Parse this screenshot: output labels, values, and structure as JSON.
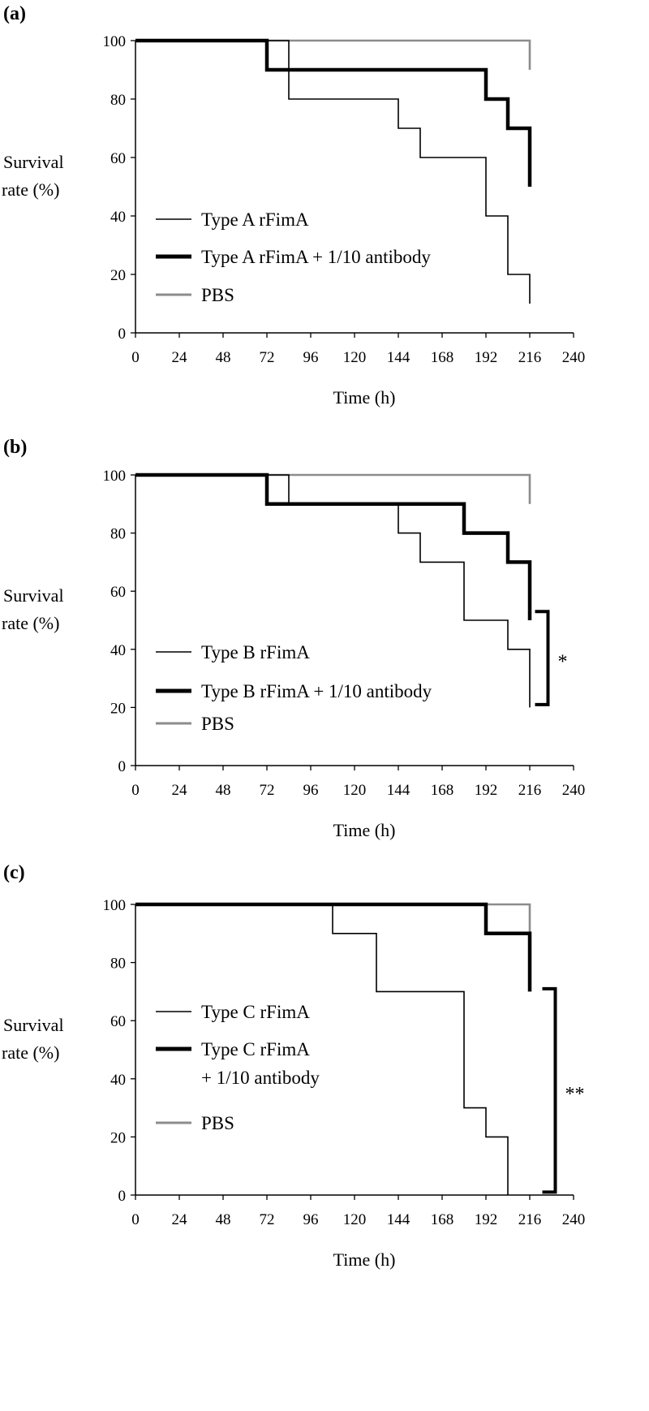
{
  "chart_data": [
    {
      "type": "line",
      "panel_label": "(a)",
      "xlabel": "Time (h)",
      "ylabel_lines": [
        "Survival",
        "rate (%)"
      ],
      "xlim": [
        0,
        240
      ],
      "ylim": [
        0,
        100
      ],
      "xticks": [
        0,
        24,
        48,
        72,
        96,
        120,
        144,
        168,
        192,
        216,
        240
      ],
      "yticks": [
        0,
        20,
        40,
        60,
        80,
        100
      ],
      "grid": false,
      "legend_placement": "lower-left",
      "series": [
        {
          "name": "Type A rFimA",
          "style": "thin",
          "color": "#000000",
          "x": [
            0,
            84,
            144,
            156,
            192,
            204,
            216
          ],
          "y": [
            100,
            80,
            70,
            60,
            40,
            20,
            10
          ]
        },
        {
          "name": "Type A rFimA + 1/10 antibody",
          "style": "thick",
          "color": "#000000",
          "x": [
            0,
            72,
            192,
            204,
            216
          ],
          "y": [
            100,
            90,
            80,
            70,
            50
          ]
        },
        {
          "name": "PBS",
          "style": "grey",
          "color": "#8c8c8c",
          "x": [
            0,
            216
          ],
          "y": [
            100,
            90
          ]
        }
      ],
      "significance": null
    },
    {
      "type": "line",
      "panel_label": "(b)",
      "xlabel": "Time (h)",
      "ylabel_lines": [
        "Survival",
        "rate (%)"
      ],
      "xlim": [
        0,
        240
      ],
      "ylim": [
        0,
        100
      ],
      "xticks": [
        0,
        24,
        48,
        72,
        96,
        120,
        144,
        168,
        192,
        216,
        240
      ],
      "yticks": [
        0,
        20,
        40,
        60,
        80,
        100
      ],
      "grid": false,
      "legend_placement": "lower-left",
      "series": [
        {
          "name": "Type B rFimA",
          "style": "thin",
          "color": "#000000",
          "x": [
            0,
            84,
            144,
            156,
            180,
            204,
            216
          ],
          "y": [
            100,
            90,
            80,
            70,
            50,
            40,
            20
          ]
        },
        {
          "name": "Type B rFimA + 1/10 antibody",
          "style": "thick",
          "color": "#000000",
          "x": [
            0,
            72,
            180,
            204,
            216
          ],
          "y": [
            100,
            90,
            80,
            70,
            50
          ]
        },
        {
          "name": "PBS",
          "style": "grey",
          "color": "#8c8c8c",
          "x": [
            0,
            216
          ],
          "y": [
            100,
            90
          ]
        }
      ],
      "significance": {
        "text": "*",
        "x": 226,
        "y_top": 53,
        "y_bottom": 21
      }
    },
    {
      "type": "line",
      "panel_label": "(c)",
      "xlabel": "Time (h)",
      "ylabel_lines": [
        "Survival",
        "rate (%)"
      ],
      "xlim": [
        0,
        240
      ],
      "ylim": [
        0,
        100
      ],
      "xticks": [
        0,
        24,
        48,
        72,
        96,
        120,
        144,
        168,
        192,
        216,
        240
      ],
      "yticks": [
        0,
        20,
        40,
        60,
        80,
        100
      ],
      "grid": false,
      "legend_placement": "lower-left",
      "series": [
        {
          "name": "Type C rFimA",
          "name_lines": [
            "Type C rFimA"
          ],
          "style": "thin",
          "color": "#000000",
          "x": [
            0,
            108,
            132,
            180,
            192,
            204
          ],
          "y": [
            100,
            90,
            70,
            30,
            20,
            0
          ]
        },
        {
          "name": "Type C rFimA + 1/10 antibody",
          "name_lines": [
            "Type C rFimA",
            "+ 1/10 antibody"
          ],
          "style": "thick",
          "color": "#000000",
          "x": [
            0,
            192,
            216
          ],
          "y": [
            100,
            90,
            70
          ]
        },
        {
          "name": "PBS",
          "name_lines": [
            "PBS"
          ],
          "style": "grey",
          "color": "#8c8c8c",
          "x": [
            0,
            216
          ],
          "y": [
            100,
            90
          ]
        }
      ],
      "significance": {
        "text": "**",
        "x": 230,
        "y_top": 71,
        "y_bottom": 1
      }
    }
  ]
}
